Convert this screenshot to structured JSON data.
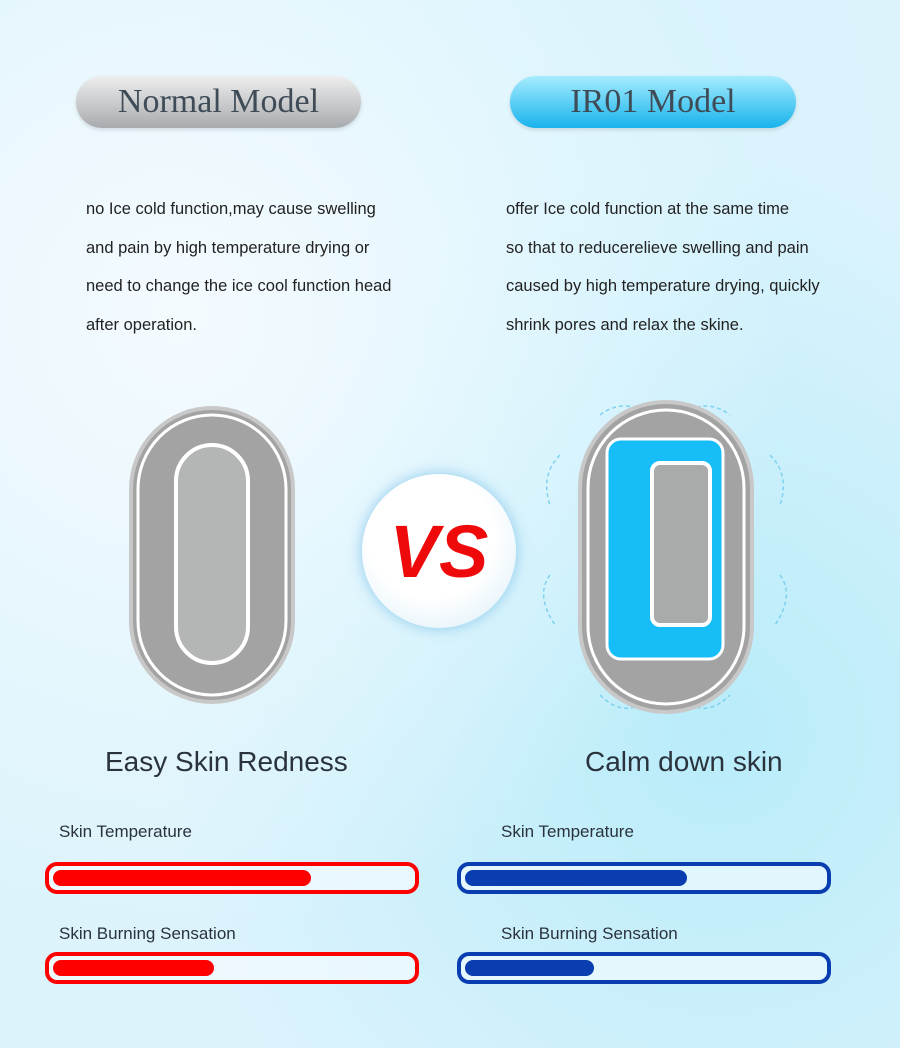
{
  "normal": {
    "title": "Normal Model",
    "description": [
      "no Ice cold function,may cause swelling",
      "and pain by high temperature drying or",
      "need to change the ice cool function head",
      "after operation."
    ],
    "caption": "Easy Skin Redness",
    "metrics": [
      {
        "label": "Skin Temperature",
        "level_percent": 72
      },
      {
        "label": "Skin Burning Sensation",
        "level_percent": 45
      }
    ],
    "color": "#ff0000"
  },
  "ir01": {
    "title": "IR01 Model",
    "description": [
      "offer Ice cold function at the same time",
      "so that to reducerelieve swelling and pain",
      "caused by high temperature drying, quickly",
      "shrink pores and relax the skine."
    ],
    "caption": "Calm down skin",
    "metrics": [
      {
        "label": "Skin Temperature",
        "level_percent": 62
      },
      {
        "label": "Skin Burning Sensation",
        "level_percent": 36
      }
    ],
    "color": "#0a3db0"
  },
  "vs_label": "VS"
}
